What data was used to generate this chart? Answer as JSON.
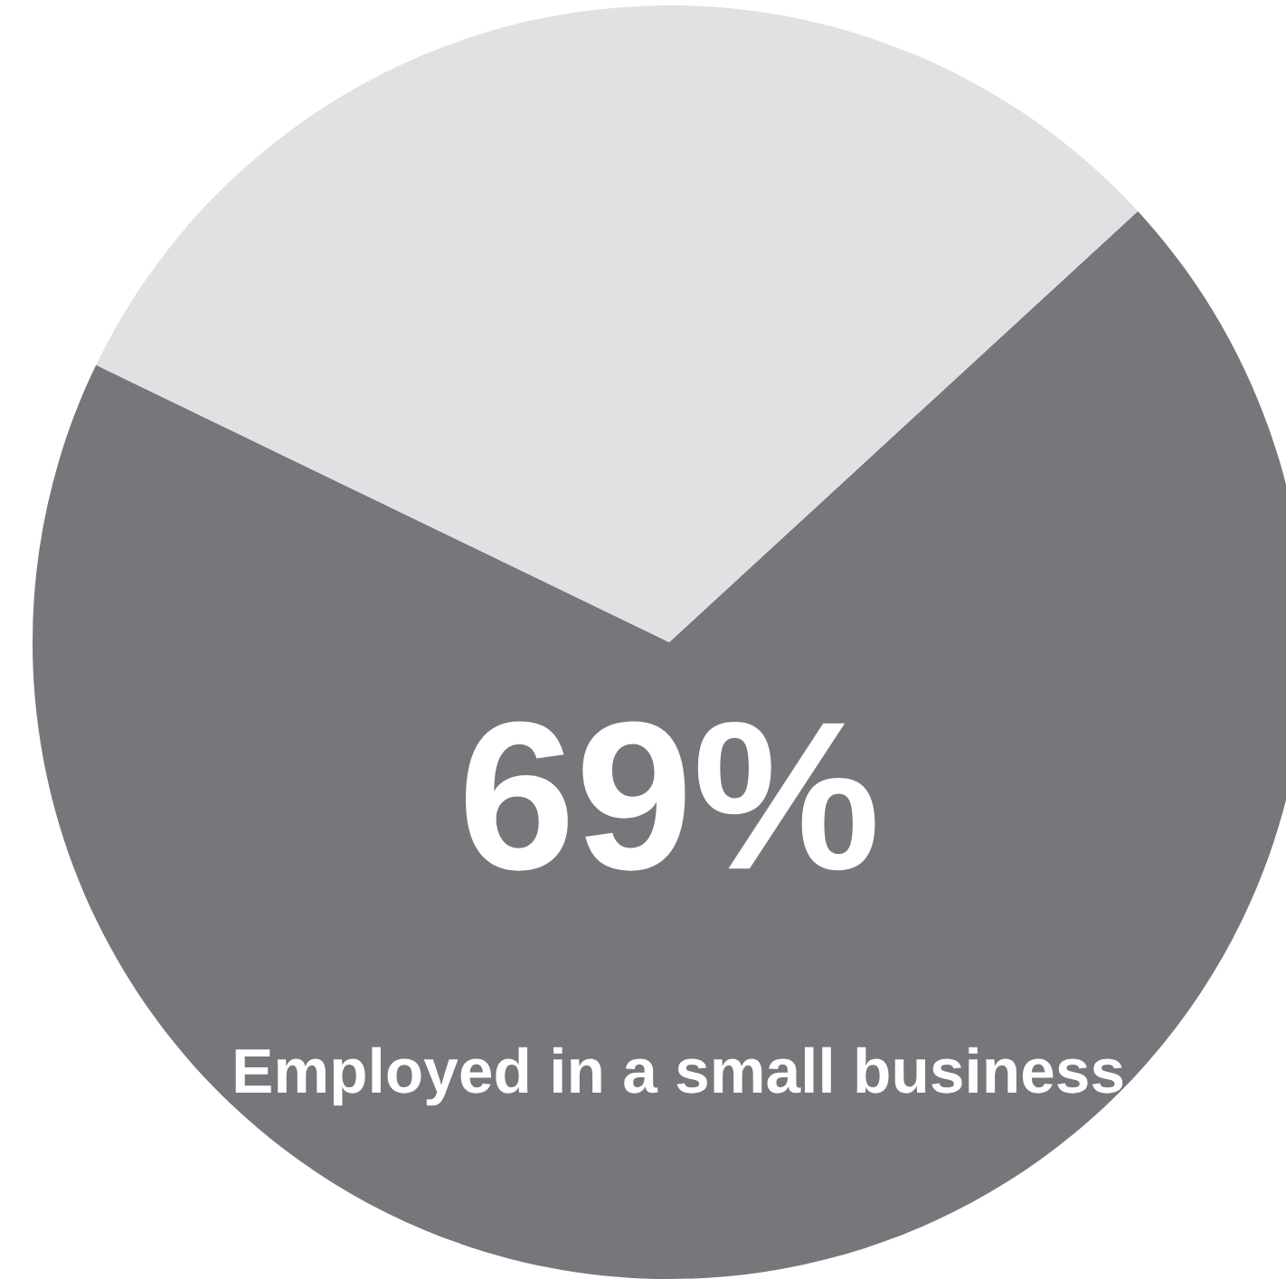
{
  "chart_data": {
    "type": "pie",
    "categories": [
      "Employed in a small business",
      null
    ],
    "values": [
      69,
      31
    ],
    "colors": [
      "#76777b",
      "#e0e1e3"
    ],
    "value_labels": [
      "69%",
      null
    ]
  }
}
